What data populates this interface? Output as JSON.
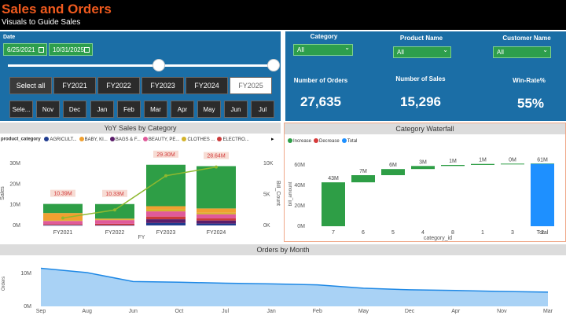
{
  "header": {
    "title": "Sales and Orders",
    "subtitle": "Visuals to Guide Sales"
  },
  "date_filter": {
    "label": "Date",
    "start": "6/25/2021",
    "end": "10/31/2025"
  },
  "fiscal_years": [
    {
      "label": "Select all",
      "active": false
    },
    {
      "label": "FY2021",
      "active": false
    },
    {
      "label": "FY2022",
      "active": false
    },
    {
      "label": "FY2023",
      "active": false
    },
    {
      "label": "FY2024",
      "active": false
    },
    {
      "label": "FY2025",
      "active": true
    }
  ],
  "months": [
    "Sele...",
    "Nov",
    "Dec",
    "Jan",
    "Feb",
    "Mar",
    "Apr",
    "May",
    "Jun",
    "Jul"
  ],
  "filters": [
    {
      "label": "Category",
      "value": "All"
    },
    {
      "label": "Product Name",
      "value": "All"
    },
    {
      "label": "Customer Name",
      "value": "All"
    }
  ],
  "kpis": [
    {
      "label": "Number of Orders",
      "value": "27,635"
    },
    {
      "label": "Number of Sales",
      "value": "15,296"
    },
    {
      "label": "Win-Rate%",
      "value": "55%"
    }
  ],
  "yoy_chart": {
    "title": "YoY Sales by Category",
    "legend_title": "product_category",
    "legend_items": [
      {
        "name": "AGRICULT...",
        "color": "#1f3b8f"
      },
      {
        "name": "BABY, KI...",
        "color": "#f0a030"
      },
      {
        "name": "BAGS & F...",
        "color": "#5b1d6b"
      },
      {
        "name": "BEAUTY, PE...",
        "color": "#e05a9a"
      },
      {
        "name": "CLOTHES ...",
        "color": "#d4b32b"
      },
      {
        "name": "ELECTRO...",
        "color": "#cc3b3b"
      }
    ],
    "xlabel": "FY",
    "ylabel": "Sales",
    "y2label": "Bill_Count",
    "yticks": [
      "30M",
      "20M",
      "10M",
      "0M"
    ],
    "y2ticks": [
      "10K",
      "5K",
      "0K"
    ],
    "bar_labels": [
      "10.39M",
      "10.33M",
      "29.30M",
      "28.64M"
    ]
  },
  "waterfall": {
    "title": "Category Waterfall",
    "legend": [
      {
        "name": "Increase",
        "color": "#2e9e46"
      },
      {
        "name": "Decrease",
        "color": "#d63a3a"
      },
      {
        "name": "Total",
        "color": "#1e90ff"
      }
    ],
    "xlabel": "category_id",
    "ylabel": "bill_amount",
    "yticks": [
      "60M",
      "40M",
      "20M",
      "0M"
    ],
    "bar_labels": [
      "43M",
      "7M",
      "6M",
      "3M",
      "1M",
      "1M",
      "0M",
      "61M"
    ]
  },
  "orders_chart": {
    "title": "Orders by Month",
    "ylabel": "Orders",
    "yticks": [
      "10M",
      "0M"
    ],
    "months": [
      "Sep",
      "Aug",
      "Jun",
      "Oct",
      "Jul",
      "Jan",
      "Feb",
      "May",
      "Dec",
      "Apr",
      "Nov",
      "Mar"
    ]
  },
  "chart_data": [
    {
      "type": "bar",
      "title": "YoY Sales by Category",
      "categories": [
        "FY2021",
        "FY2022",
        "FY2023",
        "FY2024"
      ],
      "series": [
        {
          "name": "AGRICULT...",
          "values": [
            0.1,
            0.1,
            1.2,
            0.9
          ]
        },
        {
          "name": "BABY, KI...",
          "values": [
            3.5,
            0.4,
            1.5,
            2.0
          ]
        },
        {
          "name": "BAGS & F...",
          "values": [
            0.2,
            0.1,
            1.8,
            1.5
          ]
        },
        {
          "name": "BEAUTY, PE...",
          "values": [
            1.6,
            1.8,
            2.5,
            2.0
          ]
        },
        {
          "name": "CLOTHES ...",
          "values": [
            0.3,
            0.3,
            1.0,
            0.8
          ]
        },
        {
          "name": "ELECTRO...",
          "values": [
            0.3,
            0.6,
            1.3,
            1.0
          ]
        },
        {
          "name": "OTHER",
          "values": [
            4.39,
            7.03,
            20.0,
            20.44
          ]
        }
      ],
      "line": {
        "name": "Bill_Count",
        "values": [
          1.2,
          2.5,
          8.0,
          9.4
        ]
      },
      "totals": [
        10.39,
        10.33,
        29.3,
        28.64
      ],
      "xlabel": "FY",
      "ylabel": "Sales",
      "ylim": [
        0,
        33
      ],
      "y2lim": [
        0,
        11
      ]
    },
    {
      "type": "bar",
      "title": "Category Waterfall",
      "categories": [
        "7",
        "6",
        "5",
        "4",
        "8",
        "1",
        "3",
        "2",
        "Total"
      ],
      "values": [
        43,
        7,
        6,
        3,
        1,
        1,
        0.3,
        0.1,
        61
      ],
      "xlabel": "category_id",
      "ylabel": "bill_amount",
      "ylim": [
        0,
        70
      ]
    },
    {
      "type": "area",
      "title": "Orders by Month",
      "categories": [
        "Sep",
        "Aug",
        "Jun",
        "Oct",
        "Jul",
        "Jan",
        "Feb",
        "May",
        "Dec",
        "Apr",
        "Nov",
        "Mar"
      ],
      "values": [
        11.5,
        10.2,
        7.5,
        7.3,
        7.0,
        6.8,
        6.5,
        5.5,
        5.0,
        4.8,
        4.5,
        4.3
      ],
      "ylabel": "Orders",
      "ylim": [
        0,
        14
      ]
    }
  ]
}
